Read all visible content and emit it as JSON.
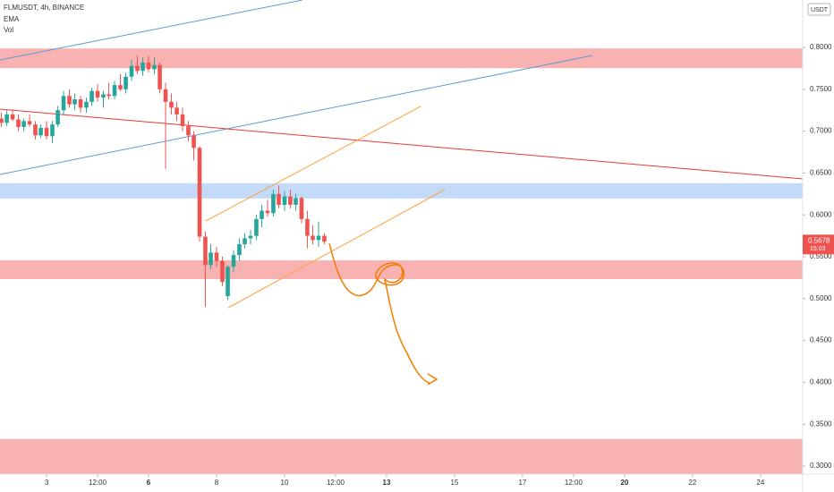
{
  "chart_data": {
    "type": "candlestick",
    "title": "FLMUSDT, 4h, BINANCE",
    "indicators": [
      "EMA",
      "Vol"
    ],
    "currency": "USDT",
    "x": [
      1.67,
      1.83,
      2,
      2.17,
      2.33,
      2.5,
      2.67,
      2.83,
      3,
      3.17,
      3.33,
      3.5,
      3.67,
      3.83,
      4,
      4.17,
      4.33,
      4.5,
      4.67,
      4.83,
      5,
      5.17,
      5.33,
      5.5,
      5.67,
      5.83,
      6,
      6.17,
      6.33,
      6.5,
      6.67,
      6.83,
      7,
      7.17,
      7.33,
      7.5,
      7.67,
      7.83,
      8,
      8.17,
      8.33,
      8.5,
      8.67,
      8.83,
      9,
      9.17,
      9.33,
      9.5,
      9.67,
      9.83,
      10,
      10.17,
      10.33,
      10.5,
      10.67,
      10.83,
      11,
      11.17
    ],
    "open": [
      0.715,
      0.71,
      0.72,
      0.714,
      0.705,
      0.712,
      0.708,
      0.695,
      0.704,
      0.694,
      0.708,
      0.725,
      0.742,
      0.732,
      0.738,
      0.728,
      0.735,
      0.748,
      0.74,
      0.744,
      0.742,
      0.755,
      0.75,
      0.765,
      0.778,
      0.772,
      0.782,
      0.774,
      0.779,
      0.75,
      0.735,
      0.728,
      0.72,
      0.706,
      0.695,
      0.68,
      0.574,
      0.54,
      0.555,
      0.545,
      0.503,
      0.538,
      0.552,
      0.565,
      0.572,
      0.575,
      0.595,
      0.605,
      0.602,
      0.625,
      0.612,
      0.622,
      0.612,
      0.62,
      0.595,
      0.575,
      0.57,
      0.575
    ],
    "high": [
      0.722,
      0.725,
      0.726,
      0.72,
      0.715,
      0.72,
      0.712,
      0.708,
      0.712,
      0.712,
      0.73,
      0.748,
      0.75,
      0.745,
      0.742,
      0.74,
      0.752,
      0.756,
      0.748,
      0.758,
      0.76,
      0.768,
      0.77,
      0.785,
      0.79,
      0.788,
      0.79,
      0.788,
      0.782,
      0.758,
      0.745,
      0.735,
      0.728,
      0.712,
      0.7,
      0.682,
      0.58,
      0.565,
      0.562,
      0.55,
      0.54,
      0.558,
      0.572,
      0.578,
      0.582,
      0.6,
      0.612,
      0.618,
      0.63,
      0.635,
      0.628,
      0.63,
      0.625,
      0.622,
      0.605,
      0.588,
      0.592,
      0.578
    ],
    "low": [
      0.705,
      0.706,
      0.712,
      0.7,
      0.7,
      0.705,
      0.69,
      0.692,
      0.69,
      0.686,
      0.705,
      0.72,
      0.728,
      0.725,
      0.722,
      0.722,
      0.73,
      0.735,
      0.728,
      0.738,
      0.738,
      0.748,
      0.745,
      0.76,
      0.768,
      0.766,
      0.77,
      0.768,
      0.745,
      0.655,
      0.72,
      0.712,
      0.7,
      0.688,
      0.665,
      0.568,
      0.49,
      0.535,
      0.538,
      0.515,
      0.498,
      0.532,
      0.545,
      0.56,
      0.565,
      0.57,
      0.585,
      0.598,
      0.598,
      0.608,
      0.605,
      0.608,
      0.605,
      0.59,
      0.56,
      0.565,
      0.562,
      0.565
    ],
    "close": [
      0.71,
      0.72,
      0.714,
      0.705,
      0.712,
      0.708,
      0.695,
      0.704,
      0.694,
      0.708,
      0.725,
      0.742,
      0.732,
      0.738,
      0.728,
      0.735,
      0.748,
      0.74,
      0.744,
      0.742,
      0.755,
      0.75,
      0.765,
      0.778,
      0.772,
      0.782,
      0.774,
      0.779,
      0.75,
      0.735,
      0.728,
      0.72,
      0.706,
      0.695,
      0.68,
      0.574,
      0.54,
      0.555,
      0.545,
      0.52,
      0.538,
      0.552,
      0.565,
      0.572,
      0.575,
      0.595,
      0.605,
      0.602,
      0.625,
      0.612,
      0.622,
      0.612,
      0.62,
      0.595,
      0.575,
      0.57,
      0.575,
      0.568
    ],
    "up_color": "#26a69a",
    "down_color": "#ef5350",
    "last_price": 0.5678,
    "countdown": "15:03",
    "zones": [
      {
        "from": 0.7752,
        "to": 0.7987,
        "color": "#f8a5a5"
      },
      {
        "from": 0.6196,
        "to": 0.6378,
        "color": "#b9d3f7"
      },
      {
        "from": 0.5233,
        "to": 0.5457,
        "color": "#f8a5a5"
      },
      {
        "from": 0.2904,
        "to": 0.3324,
        "color": "#f8a5a5"
      }
    ],
    "xlim": [
      1.63,
      25.24
    ],
    "xticks": [
      3,
      {
        "value": 4.5,
        "label": "12:00"
      },
      6,
      8,
      10,
      {
        "value": 11.5,
        "label": "12:00"
      },
      13,
      15,
      17,
      {
        "value": 18.5,
        "label": "12:00"
      },
      20,
      22,
      24
    ],
    "ylim": [
      0.2904,
      0.8566
    ],
    "yticks": [
      {
        "value": 0.3,
        "label": "0.3000"
      },
      {
        "value": 0.35,
        "label": "0.3500"
      },
      {
        "value": 0.4,
        "label": "0.4000"
      },
      {
        "value": 0.45,
        "label": "0.4500"
      },
      {
        "value": 0.5,
        "label": "0.5000"
      },
      {
        "value": 0.55,
        "label": "0.5500"
      },
      {
        "value": 0.6,
        "label": "0.6000"
      },
      {
        "value": 0.65,
        "label": "0.6500"
      },
      {
        "value": 0.7,
        "label": "0.7000"
      },
      {
        "value": 0.75,
        "label": "0.7500"
      },
      {
        "value": 0.8,
        "label": "0.8000"
      }
    ]
  }
}
